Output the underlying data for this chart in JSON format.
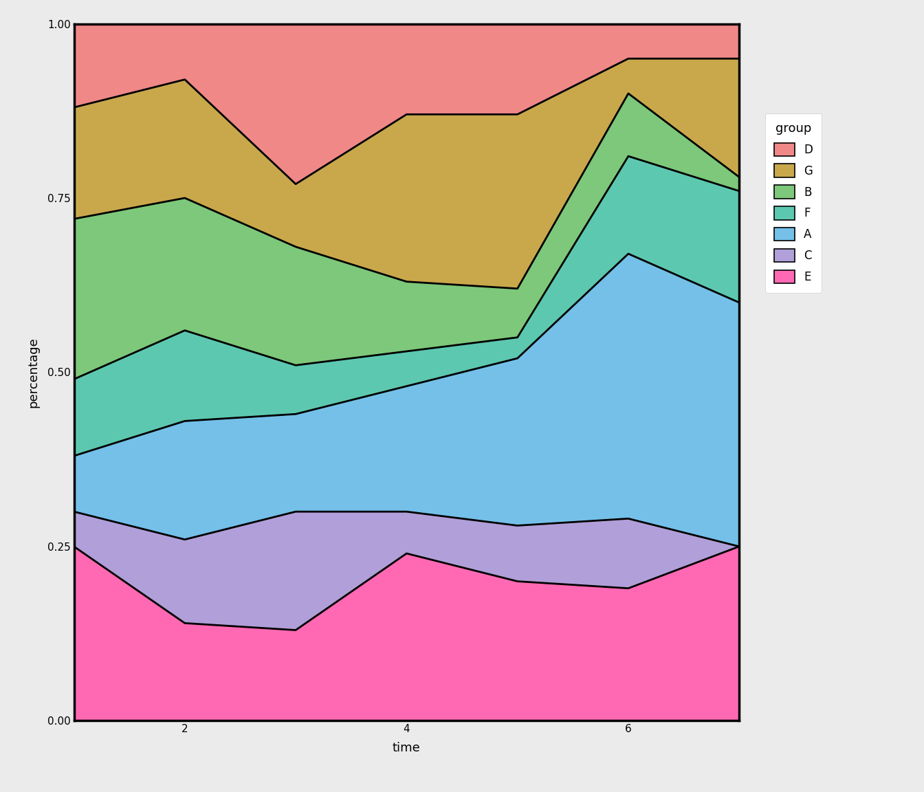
{
  "time": [
    1,
    2,
    3,
    4,
    5,
    6,
    7
  ],
  "groups": [
    "E",
    "C",
    "A",
    "F",
    "B",
    "G",
    "D"
  ],
  "colors": {
    "E": "#F8766D",
    "C": "#B79F00",
    "A": "#00BA38",
    "F": "#00BFC4",
    "B": "#619CFF",
    "G": "#C77CFF",
    "D": "#F564E3"
  },
  "boundaries": {
    "E": [
      0.25,
      0.14,
      0.13,
      0.24,
      0.2,
      0.19,
      0.25
    ],
    "C": [
      0.3,
      0.26,
      0.3,
      0.3,
      0.28,
      0.29,
      0.25
    ],
    "A": [
      0.38,
      0.43,
      0.44,
      0.48,
      0.52,
      0.67,
      0.6
    ],
    "F": [
      0.49,
      0.56,
      0.51,
      0.53,
      0.55,
      0.81,
      0.76
    ],
    "B": [
      0.72,
      0.75,
      0.68,
      0.63,
      0.62,
      0.9,
      0.78
    ],
    "G": [
      0.88,
      0.92,
      0.77,
      0.87,
      0.87,
      0.95,
      0.95
    ],
    "D": [
      1.0,
      1.0,
      1.0,
      1.0,
      1.0,
      1.0,
      1.0
    ]
  },
  "legend_title": "group",
  "legend_order": [
    "D",
    "G",
    "B",
    "F",
    "A",
    "C",
    "E"
  ],
  "xlabel": "time",
  "ylabel": "percentage",
  "xlim": [
    1,
    7
  ],
  "ylim": [
    0,
    1
  ],
  "background_color": "#EBEBEB",
  "panel_background": "#EBEBEB",
  "grid_color": "#FFFFFF",
  "line_color": "#000000",
  "line_width": 2.0,
  "axis_fontsize": 13,
  "tick_fontsize": 11,
  "legend_fontsize": 12,
  "fill_colors": {
    "E": "#FF69B4",
    "C": "#B09FD0",
    "A": "#74B9E8",
    "F": "#66CDAA",
    "B": "#7DC87A",
    "G": "#C9A84C",
    "D": "#F08888"
  }
}
